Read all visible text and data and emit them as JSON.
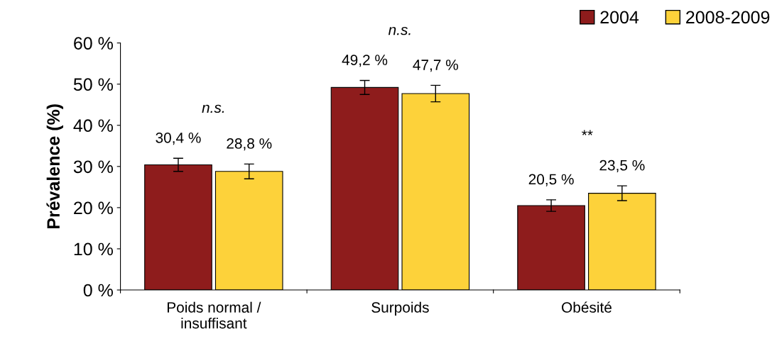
{
  "chart_data": {
    "type": "bar",
    "ylabel": "Prévalence (%)",
    "categories": [
      "Poids normal /\ninsuffisant",
      "Surpoids",
      "Obésité"
    ],
    "series": [
      {
        "name": "2004",
        "color": "#8e1c1c",
        "values": [
          30.4,
          49.2,
          20.5
        ],
        "errors": [
          1.6,
          1.7,
          1.4
        ],
        "value_labels": [
          "30,4 %",
          "49,2 %",
          "20,5 %"
        ]
      },
      {
        "name": "2008-2009",
        "color": "#fdd23a",
        "values": [
          28.8,
          47.7,
          23.5
        ],
        "errors": [
          1.8,
          2.0,
          1.8
        ],
        "value_labels": [
          "28,8 %",
          "47,7 %",
          "23,5 %"
        ]
      }
    ],
    "ylim": [
      0,
      60
    ],
    "yticks": [
      {
        "value": 0,
        "label": "0 %"
      },
      {
        "value": 10,
        "label": "10 %"
      },
      {
        "value": 20,
        "label": "20 %"
      },
      {
        "value": 30,
        "label": "30 %"
      },
      {
        "value": 40,
        "label": "40 %"
      },
      {
        "value": 50,
        "label": "50 %"
      },
      {
        "value": 60,
        "label": "60 %"
      }
    ],
    "annotations": [
      "n.s.",
      "n.s.",
      "**"
    ],
    "grid": false,
    "legend": "top right"
  }
}
